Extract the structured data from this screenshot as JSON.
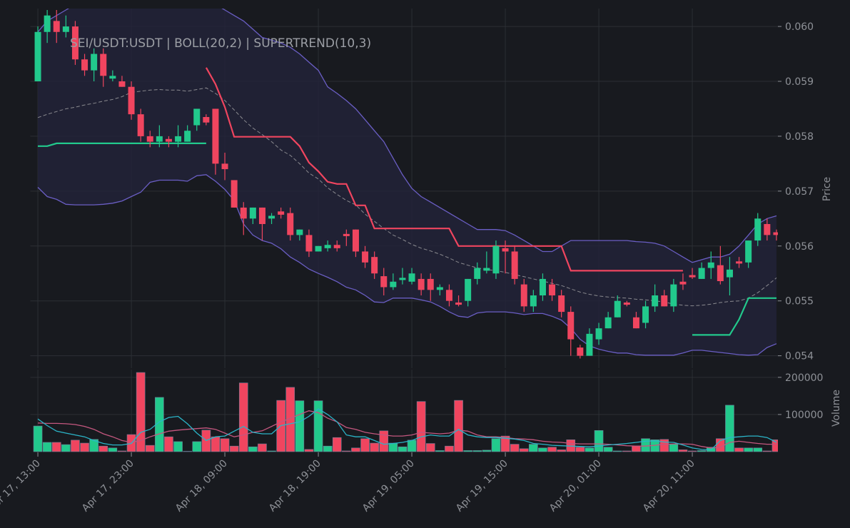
{
  "chart_data": [
    {
      "type": "candlestick",
      "title": "SEI/USDT:USDT | BOLL(20,2) | SUPERTREND(10,3)",
      "ylabel": "Price",
      "ylim": [
        0.0538,
        0.0603
      ],
      "yticks": [
        0.054,
        0.055,
        0.056,
        0.057,
        0.058,
        0.059,
        {
          "value": 0.06,
          "label": "0.060"
        }
      ],
      "grid": true,
      "up_color": "#22c98c",
      "down_color": "#f0455f",
      "open": [
        0.059,
        0.0599,
        0.0601,
        0.0599,
        0.06,
        0.0594,
        0.0592,
        0.0595,
        0.05905,
        0.059,
        0.0589,
        0.0584,
        0.058,
        0.0579,
        0.05795,
        0.0579,
        0.0579,
        0.0582,
        0.05835,
        0.0585,
        0.0575,
        0.0572,
        0.0567,
        0.0565,
        0.0567,
        0.0565,
        0.05663,
        0.0566,
        0.0562,
        0.0562,
        0.0559,
        0.05596,
        0.05602,
        0.05622,
        0.0563,
        0.0559,
        0.0558,
        0.05545,
        0.05525,
        0.05538,
        0.05535,
        0.0554,
        0.0554,
        0.0552,
        0.0552,
        0.05497,
        0.055,
        0.0554,
        0.05555,
        0.0555,
        0.05596,
        0.0559,
        0.0553,
        0.0549,
        0.0551,
        0.0553,
        0.0551,
        0.0548,
        0.05415,
        0.054,
        0.0543,
        0.0545,
        0.0547,
        0.05497,
        0.0547,
        0.0546,
        0.0549,
        0.0551,
        0.0549,
        0.05535,
        0.05547,
        0.0554,
        0.0556,
        0.05565,
        0.05543,
        0.05572,
        0.0557,
        0.0561,
        0.0564,
        0.05625
      ],
      "high": [
        0.06,
        0.0603,
        0.0603,
        0.0602,
        0.0601,
        0.0595,
        0.0596,
        0.0596,
        0.0592,
        0.0591,
        0.059,
        0.0585,
        0.0581,
        0.0582,
        0.058,
        0.0582,
        0.0582,
        0.0585,
        0.0584,
        0.0585,
        0.0577,
        0.0572,
        0.0568,
        0.0567,
        0.0567,
        0.0566,
        0.0567,
        0.0567,
        0.0563,
        0.0563,
        0.056,
        0.0561,
        0.0561,
        0.0563,
        0.0563,
        0.056,
        0.0559,
        0.0556,
        0.0555,
        0.0556,
        0.0556,
        0.0555,
        0.0555,
        0.0553,
        0.0553,
        0.0551,
        0.0554,
        0.0557,
        0.0559,
        0.0561,
        0.0561,
        0.056,
        0.0554,
        0.0552,
        0.0555,
        0.0554,
        0.0552,
        0.0549,
        0.0542,
        0.0545,
        0.0546,
        0.0548,
        0.0551,
        0.055,
        0.0548,
        0.055,
        0.0553,
        0.0552,
        0.0554,
        0.0555,
        0.0556,
        0.0557,
        0.0559,
        0.056,
        0.0558,
        0.0558,
        0.0561,
        0.0566,
        0.0565,
        0.0563
      ],
      "low": [
        0.059,
        0.0597,
        0.0597,
        0.0598,
        0.0593,
        0.0591,
        0.059,
        0.0589,
        0.059,
        0.0589,
        0.0583,
        0.0579,
        0.0578,
        0.0578,
        0.0578,
        0.0578,
        0.0579,
        0.0581,
        0.0582,
        0.0573,
        0.0572,
        0.0567,
        0.0562,
        0.0564,
        0.0561,
        0.0564,
        0.0565,
        0.0561,
        0.0561,
        0.0558,
        0.0559,
        0.0559,
        0.0559,
        0.056,
        0.0558,
        0.0556,
        0.0554,
        0.0551,
        0.0552,
        0.0553,
        0.0553,
        0.0551,
        0.055,
        0.0551,
        0.0549,
        0.0549,
        0.0549,
        0.0553,
        0.0555,
        0.0554,
        0.0555,
        0.0553,
        0.0548,
        0.0548,
        0.055,
        0.055,
        0.0547,
        0.054,
        0.05395,
        0.054,
        0.0542,
        0.0545,
        0.0547,
        0.0549,
        0.0545,
        0.0545,
        0.0548,
        0.0549,
        0.0548,
        0.0552,
        0.0554,
        0.0554,
        0.0554,
        0.0553,
        0.0551,
        0.0556,
        0.0556,
        0.056,
        0.0561,
        0.0561
      ],
      "close": [
        0.0599,
        0.0602,
        0.0599,
        0.06,
        0.0594,
        0.0592,
        0.0595,
        0.0591,
        0.0591,
        0.0589,
        0.0584,
        0.058,
        0.0579,
        0.058,
        0.0579,
        0.058,
        0.0581,
        0.0585,
        0.05825,
        0.0575,
        0.0574,
        0.0567,
        0.0565,
        0.0567,
        0.0564,
        0.05655,
        0.05657,
        0.0562,
        0.0563,
        0.0559,
        0.056,
        0.05602,
        0.05596,
        0.05618,
        0.0559,
        0.0557,
        0.0555,
        0.05525,
        0.05535,
        0.05542,
        0.0555,
        0.0552,
        0.0552,
        0.05525,
        0.055,
        0.05493,
        0.0554,
        0.0556,
        0.0556,
        0.056,
        0.0559,
        0.0554,
        0.0549,
        0.0551,
        0.0554,
        0.0551,
        0.0548,
        0.0543,
        0.054,
        0.0544,
        0.0545,
        0.0547,
        0.055,
        0.05493,
        0.0545,
        0.0549,
        0.0551,
        0.0549,
        0.0553,
        0.0553,
        0.05543,
        0.0556,
        0.0557,
        0.05536,
        0.05557,
        0.05568,
        0.0561,
        0.0565,
        0.0562,
        0.0562
      ],
      "bands": {
        "color": "#6a5ec4",
        "middle_color": "#8a8a8f",
        "fill": "#23233a",
        "upper": [
          0.0599,
          0.0601,
          0.0602,
          0.0603,
          0.0604,
          0.0605,
          0.0605,
          0.0605,
          0.0605,
          0.0605,
          0.0605,
          0.0605,
          0.0605,
          0.0605,
          0.0605,
          0.0605,
          0.0605,
          0.0605,
          0.0605,
          0.0604,
          0.0603,
          0.0602,
          0.0601,
          0.05995,
          0.0598,
          0.05975,
          0.0597,
          0.05962,
          0.0595,
          0.05935,
          0.0592,
          0.0589,
          0.05878,
          0.05865,
          0.0585,
          0.0583,
          0.0581,
          0.0579,
          0.0576,
          0.0573,
          0.05705,
          0.0569,
          0.0568,
          0.0567,
          0.0566,
          0.0565,
          0.0564,
          0.0563,
          0.0563,
          0.0563,
          0.05628,
          0.0562,
          0.0561,
          0.056,
          0.0559,
          0.0559,
          0.056,
          0.0561,
          0.0561,
          0.0561,
          0.0561,
          0.0561,
          0.0561,
          0.0561,
          0.05608,
          0.05607,
          0.05605,
          0.056,
          0.0559,
          0.0558,
          0.0557,
          0.05575,
          0.0558,
          0.0558,
          0.05585,
          0.056,
          0.0562,
          0.0564,
          0.0565,
          0.05655
        ],
        "middle": [
          0.05834,
          0.0584,
          0.05845,
          0.0585,
          0.05853,
          0.05857,
          0.0586,
          0.05864,
          0.05867,
          0.05872,
          0.0588,
          0.05882,
          0.05884,
          0.05885,
          0.05884,
          0.05884,
          0.05882,
          0.05885,
          0.05888,
          0.05878,
          0.05865,
          0.05848,
          0.0583,
          0.05815,
          0.05803,
          0.0579,
          0.05775,
          0.05765,
          0.0575,
          0.05733,
          0.05722,
          0.05706,
          0.05694,
          0.05683,
          0.05675,
          0.05658,
          0.05645,
          0.05632,
          0.0562,
          0.05612,
          0.05603,
          0.05596,
          0.05591,
          0.05585,
          0.05578,
          0.0557,
          0.05565,
          0.0556,
          0.05557,
          0.05555,
          0.05552,
          0.05548,
          0.05544,
          0.0554,
          0.05536,
          0.05532,
          0.05528,
          0.05522,
          0.05516,
          0.05512,
          0.05509,
          0.05507,
          0.05506,
          0.05505,
          0.05503,
          0.05502,
          0.055,
          0.05498,
          0.05494,
          0.05492,
          0.05491,
          0.05492,
          0.05494,
          0.05497,
          0.05499,
          0.055,
          0.05505,
          0.05515,
          0.05528,
          0.05542
        ],
        "lower": [
          0.05707,
          0.0569,
          0.05685,
          0.05676,
          0.05675,
          0.05675,
          0.05675,
          0.05676,
          0.05678,
          0.05682,
          0.0569,
          0.05698,
          0.05716,
          0.0572,
          0.0572,
          0.0572,
          0.05718,
          0.05728,
          0.0573,
          0.05718,
          0.05703,
          0.05683,
          0.0564,
          0.0562,
          0.0561,
          0.05605,
          0.05595,
          0.0558,
          0.0557,
          0.05558,
          0.0555,
          0.05543,
          0.05535,
          0.05525,
          0.0552,
          0.0551,
          0.05498,
          0.05497,
          0.05505,
          0.05505,
          0.05505,
          0.05502,
          0.05498,
          0.0549,
          0.0548,
          0.05472,
          0.0547,
          0.05478,
          0.0548,
          0.0548,
          0.0548,
          0.05478,
          0.05475,
          0.05477,
          0.05477,
          0.05472,
          0.05465,
          0.0545,
          0.0543,
          0.05418,
          0.05412,
          0.05408,
          0.05405,
          0.05405,
          0.05402,
          0.05401,
          0.05401,
          0.05401,
          0.05401,
          0.05405,
          0.0541,
          0.0541,
          0.05408,
          0.05406,
          0.05404,
          0.05402,
          0.05401,
          0.05402,
          0.05415,
          0.05422
        ]
      },
      "supertrend": [
        {
          "color": "#22c98c",
          "values": [
            0.05782,
            0.05782,
            0.05787,
            0.05787,
            0.05787,
            0.05787,
            0.05787,
            0.05787,
            0.05787,
            0.05787,
            0.05787,
            0.05787,
            0.05787,
            0.05787,
            0.05787,
            0.05787,
            0.05787,
            0.05787,
            0.05787,
            null,
            null,
            null,
            null,
            null,
            null,
            null,
            null,
            null,
            null,
            null,
            null,
            null,
            null,
            null,
            null,
            null,
            null,
            null,
            null,
            null,
            null,
            null,
            null,
            null,
            null,
            null,
            null,
            null,
            null,
            null,
            null,
            null,
            null,
            null,
            null,
            null,
            null,
            null,
            null,
            null,
            null,
            null,
            null,
            null,
            null,
            null,
            null,
            null,
            null,
            null,
            0.05438,
            0.05438,
            0.05438,
            0.05438,
            0.05438,
            0.05466,
            0.05505,
            0.05505,
            0.05505,
            0.05505
          ]
        },
        {
          "color": "#f0455f",
          "values": [
            null,
            null,
            null,
            null,
            null,
            null,
            null,
            null,
            null,
            null,
            null,
            null,
            null,
            null,
            null,
            null,
            null,
            null,
            0.05925,
            0.05895,
            0.05853,
            0.05799,
            0.05799,
            0.05799,
            0.05799,
            0.05799,
            0.05799,
            0.05799,
            0.05782,
            0.05752,
            0.05736,
            0.05717,
            0.05713,
            0.05713,
            0.05674,
            0.05674,
            0.05632,
            0.05632,
            0.05632,
            0.05632,
            0.05632,
            0.05632,
            0.05632,
            0.05632,
            0.05632,
            0.056,
            0.056,
            0.056,
            0.056,
            0.056,
            0.056,
            0.056,
            0.056,
            0.056,
            0.056,
            0.056,
            0.056,
            0.05555,
            0.05555,
            0.05555,
            0.05555,
            0.05555,
            0.05555,
            0.05555,
            0.05555,
            0.05555,
            0.05555,
            0.05555,
            0.05555,
            0.05555,
            null,
            null,
            null,
            null,
            null,
            null,
            null,
            null,
            null,
            null
          ]
        }
      ]
    },
    {
      "type": "bar",
      "ylabel": "Volume",
      "ylim": [
        0,
        215000
      ],
      "yticks": [
        100000,
        200000
      ],
      "grid": true,
      "categories": [
        "Apr 17, 13:00",
        null,
        null,
        null,
        null,
        null,
        null,
        null,
        null,
        null,
        "Apr 17, 23:00",
        null,
        null,
        null,
        null,
        null,
        null,
        null,
        null,
        null,
        "Apr 18, 09:00",
        null,
        null,
        null,
        null,
        null,
        null,
        null,
        null,
        null,
        "Apr 18, 19:00",
        null,
        null,
        null,
        null,
        null,
        null,
        null,
        null,
        null,
        "Apr 19, 05:00",
        null,
        null,
        null,
        null,
        null,
        null,
        null,
        null,
        null,
        "Apr 19, 15:00",
        null,
        null,
        null,
        null,
        null,
        null,
        null,
        null,
        null,
        "Apr 20, 01:00",
        null,
        null,
        null,
        null,
        null,
        null,
        null,
        null,
        null,
        "Apr 20, 11:00",
        null,
        null,
        null,
        null,
        null,
        null,
        null,
        null,
        null
      ],
      "values": [
        69000,
        25000,
        25000,
        19000,
        31000,
        23000,
        33000,
        15000,
        10000,
        2000,
        46000,
        213000,
        17000,
        146000,
        40000,
        27000,
        1000,
        27000,
        58000,
        40000,
        35000,
        15000,
        185000,
        13000,
        21000,
        2000,
        138000,
        173000,
        137000,
        6000,
        137000,
        15000,
        38000,
        2000,
        10000,
        35000,
        23000,
        56000,
        23000,
        13000,
        31000,
        135000,
        22000,
        3000,
        15000,
        138000,
        3000,
        3000,
        4000,
        35000,
        42000,
        20000,
        8000,
        20000,
        10000,
        12000,
        5000,
        32000,
        12000,
        10000,
        57000,
        12000,
        2000,
        2000,
        15000,
        35000,
        32000,
        33000,
        20000,
        5000,
        2000,
        3000,
        12000,
        35000,
        125000,
        10000,
        10000,
        10000,
        2000,
        32000
      ],
      "lines": [
        {
          "color": "#c4577f",
          "values": [
            77000,
            76000,
            76000,
            75000,
            73000,
            68000,
            60000,
            48000,
            40000,
            30000,
            25000,
            30000,
            40000,
            48000,
            55000,
            58000,
            60000,
            62000,
            64000,
            60000,
            50000,
            40000,
            45000,
            52000,
            56000,
            68000,
            80000,
            90000,
            100000,
            110000,
            105000,
            90000,
            80000,
            65000,
            60000,
            52000,
            48000,
            45000,
            42000,
            42000,
            45000,
            52000,
            50000,
            48000,
            50000,
            58000,
            55000,
            45000,
            40000,
            40000,
            38000,
            35000,
            34000,
            32000,
            28000,
            26000,
            25000,
            22000,
            21000,
            21000,
            21000,
            20000,
            18000,
            16000,
            15000,
            15000,
            17000,
            20000,
            21000,
            21000,
            20000,
            14000,
            10000,
            12000,
            25000,
            28000,
            25000,
            22000,
            20000,
            20000
          ]
        },
        {
          "color": "#2bb5c8",
          "values": [
            88000,
            70000,
            55000,
            50000,
            45000,
            40000,
            30000,
            22000,
            18000,
            18000,
            22000,
            52000,
            60000,
            80000,
            92000,
            95000,
            75000,
            50000,
            30000,
            40000,
            42000,
            55000,
            68000,
            52000,
            48000,
            48000,
            70000,
            75000,
            80000,
            95000,
            115000,
            100000,
            80000,
            45000,
            40000,
            40000,
            30000,
            20000,
            22000,
            25000,
            30000,
            40000,
            45000,
            42000,
            42000,
            60000,
            45000,
            40000,
            38000,
            38000,
            36000,
            34000,
            30000,
            22000,
            20000,
            17000,
            16000,
            15000,
            14000,
            13000,
            15000,
            18000,
            20000,
            22000,
            25000,
            28000,
            29000,
            26000,
            25000,
            18000,
            10000,
            6000,
            5000,
            30000,
            38000,
            40000,
            42000,
            42000,
            38000,
            25000
          ]
        }
      ]
    }
  ]
}
